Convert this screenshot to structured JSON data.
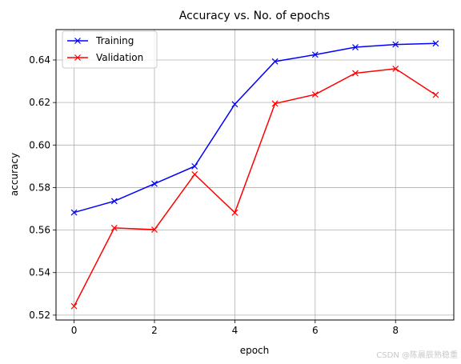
{
  "chart_data": {
    "type": "line",
    "title": "Accuracy vs. No. of epochs",
    "xlabel": "epoch",
    "ylabel": "accuracy",
    "x": [
      0,
      1,
      2,
      3,
      4,
      5,
      6,
      7,
      8,
      9
    ],
    "xlim": [
      -0.45,
      9.45
    ],
    "ylim": [
      0.5177,
      0.6543
    ],
    "xticks": [
      0,
      2,
      4,
      6,
      8
    ],
    "xtick_labels": [
      "0",
      "2",
      "4",
      "6",
      "8"
    ],
    "yticks": [
      0.52,
      0.54,
      0.56,
      0.58,
      0.6,
      0.62,
      0.64
    ],
    "ytick_labels": [
      "0.52",
      "0.54",
      "0.56",
      "0.58",
      "0.60",
      "0.62",
      "0.64"
    ],
    "grid": true,
    "legend_position": "top-left",
    "series": [
      {
        "name": "Training",
        "color": "#0000ff",
        "marker": "x",
        "values": [
          0.5683,
          0.5736,
          0.5818,
          0.59,
          0.6192,
          0.6393,
          0.6425,
          0.646,
          0.6473,
          0.6478
        ]
      },
      {
        "name": "Validation",
        "color": "#ff0000",
        "marker": "x",
        "values": [
          0.5242,
          0.561,
          0.5602,
          0.5862,
          0.5682,
          0.6195,
          0.6238,
          0.6338,
          0.6359,
          0.6236
        ]
      }
    ]
  },
  "watermark": "CSDN @陈晨辰熟稳重"
}
